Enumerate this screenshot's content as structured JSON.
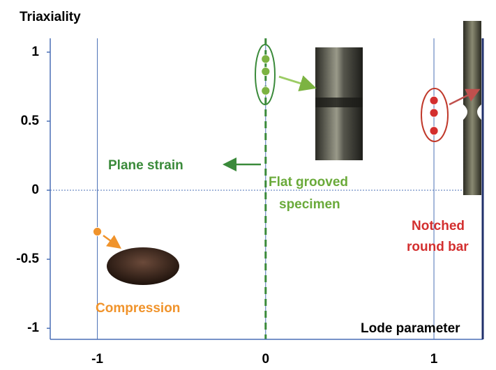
{
  "chart_data": {
    "type": "scatter",
    "ylabel": "Triaxiality",
    "xlabel": "Lode parameter",
    "xlim": [
      -1.28,
      1.29
    ],
    "ylim": [
      -1.08,
      1.1
    ],
    "xticks": [
      -1,
      0,
      1
    ],
    "yticks": [
      1,
      0.5,
      0,
      -0.5,
      -1
    ],
    "series": [
      {
        "color": "#7cb342",
        "x": [
          0,
          0,
          0
        ],
        "values": [
          0.95,
          0.86,
          0.72
        ]
      },
      {
        "color": "#d32f2f",
        "x": [
          1,
          1,
          1
        ],
        "values": [
          0.65,
          0.56,
          0.43
        ]
      },
      {
        "color": "#f0932b",
        "x": [
          -1
        ],
        "values": [
          -0.3
        ]
      }
    ],
    "annotations": {
      "plane_strain": "Plane strain",
      "flat": [
        "Flat grooved",
        "specimen"
      ],
      "notched": [
        "Notched",
        "round bar"
      ],
      "compression": "Compression"
    }
  }
}
